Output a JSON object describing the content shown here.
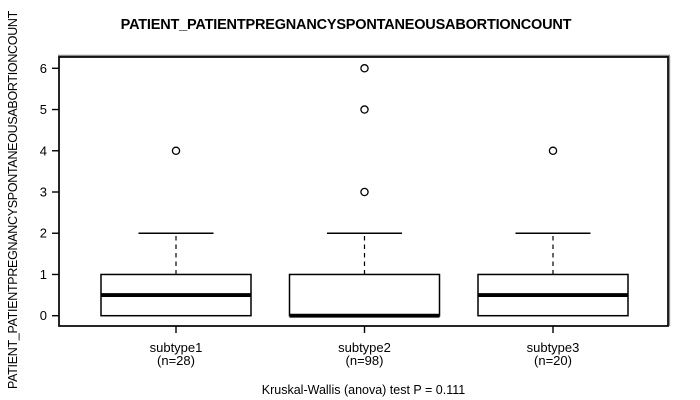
{
  "chart_data": {
    "type": "boxplot",
    "title": "PATIENT_PATIENTPREGNANCYSPONTANEOUSABORTIONCOUNT",
    "ylabel": "PATIENT_PATIENTPREGNANCYSPONTANEOUSABORTIONCOUNT",
    "xlabel": "",
    "caption": "Kruskal-Wallis (anova) test P = 0.111",
    "ylim": [
      0,
      6
    ],
    "yticks": [
      0,
      1,
      2,
      3,
      4,
      5,
      6
    ],
    "grid": false,
    "legend": "none",
    "groups": [
      {
        "label": "subtype1",
        "sublabel": "(n=28)",
        "n": 28,
        "q1": 0,
        "median": 0.5,
        "q3": 1,
        "whisker_low": 0,
        "whisker_high": 2,
        "outliers": [
          4
        ]
      },
      {
        "label": "subtype2",
        "sublabel": "(n=98)",
        "n": 98,
        "q1": 0,
        "median": 0,
        "q3": 1,
        "whisker_low": 0,
        "whisker_high": 2,
        "outliers": [
          3,
          5,
          6
        ]
      },
      {
        "label": "subtype3",
        "sublabel": "(n=20)",
        "n": 20,
        "q1": 0,
        "median": 0.5,
        "q3": 1,
        "whisker_low": 0,
        "whisker_high": 2,
        "outliers": [
          4
        ]
      }
    ],
    "stat_test": {
      "name": "Kruskal-Wallis (anova) test",
      "p_value": "0.111"
    },
    "colors": {
      "box_fill": "#ffffff",
      "stroke": "#000000",
      "border_shadow": "#8a8a8a"
    }
  }
}
